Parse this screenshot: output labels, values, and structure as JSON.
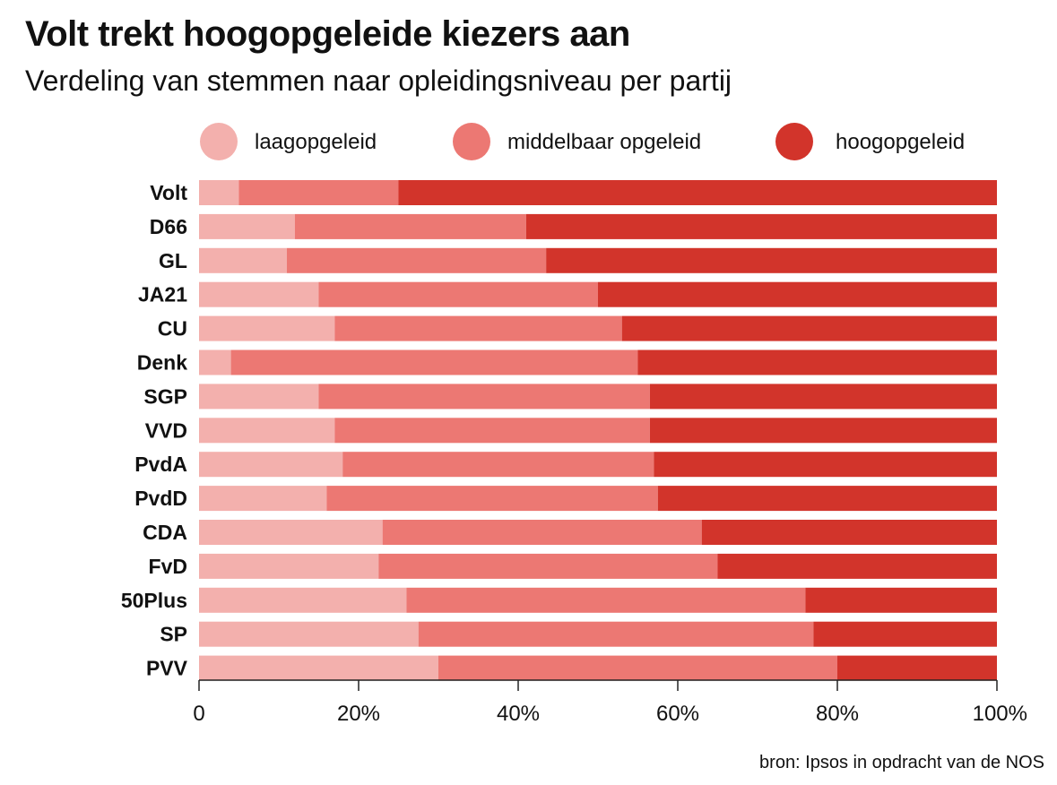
{
  "title": "Volt trekt hoogopgeleide kiezers aan",
  "subtitle": "Verdeling van stemmen naar opleidingsniveau per partij",
  "source": "bron: Ipsos in opdracht van de NOS",
  "colors": {
    "laag": "#f3b0ad",
    "middel": "#ec7873",
    "hoog": "#d2342b",
    "axis": "#222222"
  },
  "chart_data": {
    "type": "bar",
    "orientation": "horizontal",
    "stacked": true,
    "categories": [
      "Volt",
      "D66",
      "GL",
      "JA21",
      "CU",
      "Denk",
      "SGP",
      "VVD",
      "PvdA",
      "PvdD",
      "CDA",
      "FvD",
      "50Plus",
      "SP",
      "PVV"
    ],
    "series": [
      {
        "name": "laagopgeleid",
        "color": "#f3b0ad",
        "values": [
          5,
          12,
          11,
          15,
          17,
          4,
          15,
          17,
          18,
          16,
          23,
          22.5,
          26,
          27.5,
          30
        ]
      },
      {
        "name": "middelbaar opgeleid",
        "color": "#ec7873",
        "values": [
          20,
          29,
          32.5,
          35,
          36,
          51,
          41.5,
          39.5,
          39,
          41.5,
          40,
          42.5,
          50,
          49.5,
          50
        ]
      },
      {
        "name": "hoogopgeleid",
        "color": "#d2342b",
        "values": [
          75,
          59,
          56.5,
          50,
          47,
          45,
          43.5,
          43.5,
          43,
          42.5,
          37,
          35,
          24,
          23,
          20
        ]
      }
    ],
    "xlim": [
      0,
      100
    ],
    "xticks": [
      "0",
      "20%",
      "40%",
      "60%",
      "80%",
      "100%"
    ],
    "legend": "top",
    "grid": false
  }
}
